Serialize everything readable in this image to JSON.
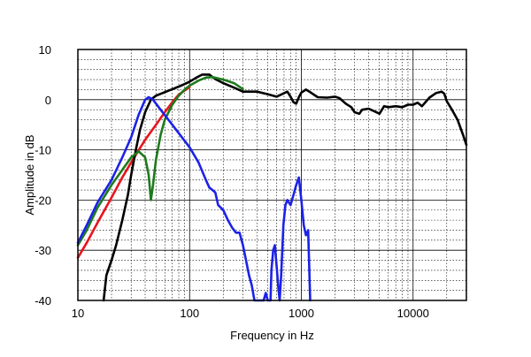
{
  "chart_data": {
    "type": "line",
    "xlabel": "Frequency in Hz",
    "ylabel": "Amplitude in dB",
    "xscale": "log",
    "xlim": [
      10,
      30000
    ],
    "ylim": [
      -40,
      10
    ],
    "grid": true,
    "xticks": [
      {
        "value": 10,
        "label": "10"
      },
      {
        "value": 100,
        "label": "100"
      },
      {
        "value": 1000,
        "label": "1000"
      },
      {
        "value": 10000,
        "label": "10000"
      }
    ],
    "yticks": [
      {
        "value": 10,
        "label": "10"
      },
      {
        "value": 0,
        "label": "0"
      },
      {
        "value": -10,
        "label": "-10"
      },
      {
        "value": -20,
        "label": "-20"
      },
      {
        "value": -30,
        "label": "-30"
      },
      {
        "value": -40,
        "label": "-40"
      }
    ],
    "series": [
      {
        "color": "#e8141c",
        "points": [
          [
            10,
            -31.5
          ],
          [
            12,
            -28.5
          ],
          [
            15,
            -24.5
          ],
          [
            20,
            -19.5
          ],
          [
            25,
            -15.5
          ],
          [
            30,
            -12.5
          ],
          [
            40,
            -8
          ],
          [
            50,
            -5
          ],
          [
            60,
            -2.5
          ],
          [
            70,
            -0.5
          ],
          [
            80,
            1
          ],
          [
            90,
            1.8
          ],
          [
            100,
            2.5
          ]
        ]
      },
      {
        "color": "#000000",
        "points": [
          [
            17,
            -40
          ],
          [
            18,
            -35
          ],
          [
            20,
            -32
          ],
          [
            22,
            -29
          ],
          [
            25,
            -24
          ],
          [
            28,
            -19
          ],
          [
            30,
            -15
          ],
          [
            33,
            -10
          ],
          [
            36,
            -6
          ],
          [
            40,
            -2.5
          ],
          [
            45,
            0
          ],
          [
            50,
            0.8
          ],
          [
            60,
            1.5
          ],
          [
            70,
            2.1
          ],
          [
            80,
            2.6
          ],
          [
            90,
            3.1
          ],
          [
            100,
            3.6
          ],
          [
            115,
            4.4
          ],
          [
            130,
            5
          ],
          [
            150,
            5
          ],
          [
            170,
            4.1
          ],
          [
            200,
            3.3
          ],
          [
            250,
            2.4
          ],
          [
            300,
            1.6
          ],
          [
            400,
            1.6
          ],
          [
            500,
            1.1
          ],
          [
            600,
            0.6
          ],
          [
            700,
            1.3
          ],
          [
            750,
            1.6
          ],
          [
            800,
            0.6
          ],
          [
            850,
            -0.5
          ],
          [
            900,
            -0.8
          ],
          [
            950,
            0.5
          ],
          [
            1000,
            1.4
          ],
          [
            1100,
            2
          ],
          [
            1200,
            1.5
          ],
          [
            1400,
            0.5
          ],
          [
            1700,
            0.4
          ],
          [
            2000,
            0.6
          ],
          [
            2200,
            0.3
          ],
          [
            2500,
            -0.8
          ],
          [
            2800,
            -1.5
          ],
          [
            3000,
            -2.5
          ],
          [
            3300,
            -2.8
          ],
          [
            3500,
            -2
          ],
          [
            4000,
            -1.8
          ],
          [
            4500,
            -2.3
          ],
          [
            5000,
            -2.8
          ],
          [
            5500,
            -1.3
          ],
          [
            6000,
            -1.5
          ],
          [
            7000,
            -1.3
          ],
          [
            8000,
            -1.5
          ],
          [
            9000,
            -1
          ],
          [
            10000,
            -1
          ],
          [
            11000,
            -0.6
          ],
          [
            12000,
            -1.3
          ],
          [
            14000,
            0.4
          ],
          [
            16000,
            1.3
          ],
          [
            18000,
            1.6
          ],
          [
            19000,
            1.2
          ],
          [
            20000,
            -0.3
          ],
          [
            22000,
            -1.8
          ],
          [
            25000,
            -4
          ],
          [
            28000,
            -7
          ],
          [
            30000,
            -9
          ]
        ]
      },
      {
        "color": "#1d7a1d",
        "points": [
          [
            10,
            -29
          ],
          [
            12,
            -26
          ],
          [
            15,
            -21.5
          ],
          [
            20,
            -17
          ],
          [
            25,
            -14
          ],
          [
            30,
            -11.5
          ],
          [
            35,
            -10.3
          ],
          [
            40,
            -11.5
          ],
          [
            43,
            -15
          ],
          [
            45,
            -20
          ],
          [
            47,
            -17
          ],
          [
            50,
            -12
          ],
          [
            55,
            -7
          ],
          [
            60,
            -4
          ],
          [
            70,
            -1
          ],
          [
            80,
            0.8
          ],
          [
            90,
            2
          ],
          [
            100,
            2.8
          ],
          [
            120,
            3.8
          ],
          [
            140,
            4.4
          ],
          [
            160,
            4.5
          ],
          [
            200,
            4
          ],
          [
            250,
            3.3
          ],
          [
            300,
            2.1
          ]
        ]
      },
      {
        "color": "#1c22e8",
        "points": [
          [
            10,
            -28.5
          ],
          [
            12,
            -25
          ],
          [
            15,
            -20.5
          ],
          [
            20,
            -16
          ],
          [
            25,
            -11.5
          ],
          [
            30,
            -7.5
          ],
          [
            35,
            -3
          ],
          [
            40,
            0
          ],
          [
            43,
            0.5
          ],
          [
            47,
            0
          ],
          [
            55,
            -2
          ],
          [
            70,
            -5
          ],
          [
            100,
            -9.5
          ],
          [
            120,
            -12.5
          ],
          [
            140,
            -16
          ],
          [
            150,
            -17.5
          ],
          [
            160,
            -18
          ],
          [
            170,
            -18.5
          ],
          [
            180,
            -21
          ],
          [
            200,
            -22
          ],
          [
            220,
            -24
          ],
          [
            240,
            -25.5
          ],
          [
            260,
            -26.5
          ],
          [
            280,
            -26.5
          ],
          [
            300,
            -29
          ],
          [
            320,
            -32
          ],
          [
            340,
            -35
          ],
          [
            360,
            -37
          ],
          [
            380,
            -40
          ],
          [
            460,
            -40
          ],
          [
            480,
            -38.5
          ],
          [
            500,
            -40
          ],
          [
            530,
            -40
          ],
          [
            540,
            -34
          ],
          [
            560,
            -30
          ],
          [
            580,
            -29
          ],
          [
            600,
            -33
          ],
          [
            620,
            -37
          ],
          [
            640,
            -40
          ],
          [
            660,
            -35
          ],
          [
            690,
            -25
          ],
          [
            720,
            -21
          ],
          [
            750,
            -20
          ],
          [
            800,
            -21
          ],
          [
            850,
            -19
          ],
          [
            900,
            -17
          ],
          [
            950,
            -15.5
          ],
          [
            1000,
            -20
          ],
          [
            1050,
            -25
          ],
          [
            1100,
            -27
          ],
          [
            1150,
            -26
          ],
          [
            1200,
            -40
          ]
        ]
      }
    ]
  }
}
